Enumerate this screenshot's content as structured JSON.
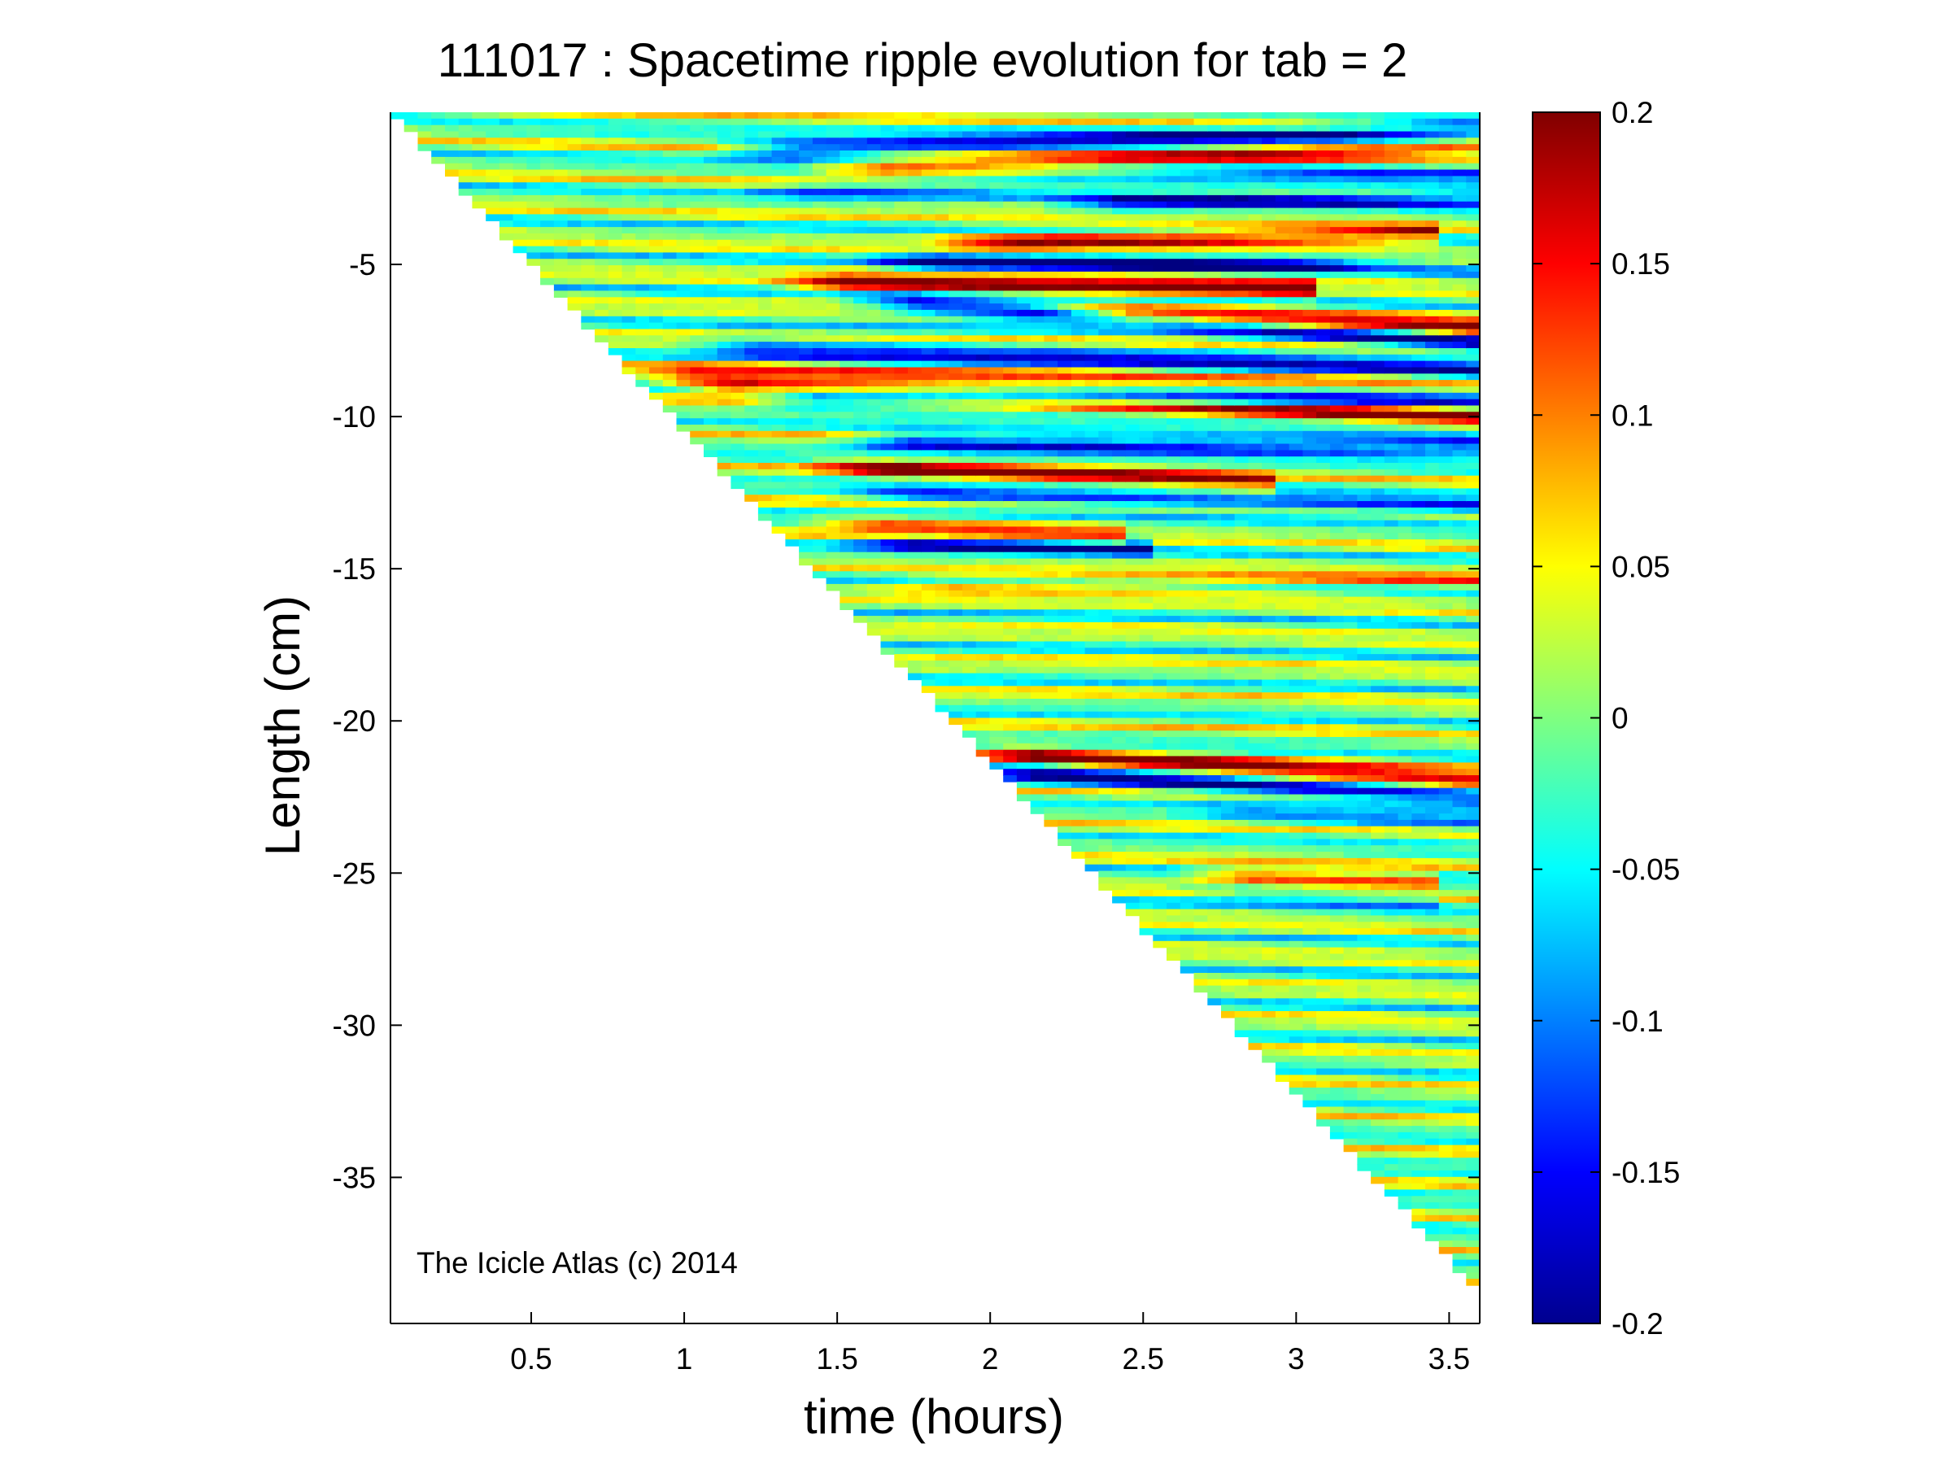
{
  "chart_data": {
    "type": "heatmap",
    "title": "111017 : Spacetime ripple evolution for tab = 2",
    "xlabel": "time (hours)",
    "ylabel": "Length (cm)",
    "xlim": [
      0.04,
      3.6
    ],
    "ylim": [
      -39.8,
      0
    ],
    "x_ticks": [
      0.5,
      1,
      1.5,
      2,
      2.5,
      3,
      3.5
    ],
    "x_tick_labels": [
      "0.5",
      "1",
      "1.5",
      "2",
      "2.5",
      "3",
      "3.5"
    ],
    "y_ticks": [
      -5,
      -10,
      -15,
      -20,
      -25,
      -30,
      -35
    ],
    "y_tick_labels": [
      "-5",
      "-10",
      "-15",
      "-20",
      "-25",
      "-30",
      "-35"
    ],
    "colorbar": {
      "colormap": "jet",
      "clim": [
        -0.2,
        0.2
      ],
      "ticks": [
        0.2,
        0.15,
        0.1,
        0.05,
        0,
        -0.05,
        -0.1,
        -0.15,
        -0.2
      ],
      "tick_labels": [
        "0.2",
        "0.15",
        "0.1",
        "0.05",
        "0",
        "-0.05",
        "-0.1",
        "-0.15",
        "-0.2"
      ]
    },
    "data_region": {
      "description_boundary": "icicle tip grows from 0 cm at t=0.04 h to -38.8 cm at t=3.6 h",
      "tip_start": [
        0.04,
        0
      ],
      "tip_end": [
        3.6,
        -38.8
      ]
    },
    "ridges": [
      {
        "t0": 1.1,
        "t1": 3.6,
        "y0": -1.3,
        "y1": -0.6,
        "amp": -0.17
      },
      {
        "t0": 1.4,
        "t1": 3.6,
        "y0": -1.9,
        "y1": -1.1,
        "amp": 0.15
      },
      {
        "t0": 1.2,
        "t1": 3.6,
        "y0": -2.6,
        "y1": -2.0,
        "amp": -0.09
      },
      {
        "t0": 2.2,
        "t1": 3.6,
        "y0": -3.0,
        "y1": -2.8,
        "amp": -0.14
      },
      {
        "t0": 1.8,
        "t1": 3.4,
        "y0": -4.3,
        "y1": -4.0,
        "amp": 0.17
      },
      {
        "t0": 1.6,
        "t1": 3.6,
        "y0": -4.9,
        "y1": -5.1,
        "amp": -0.18
      },
      {
        "t0": 1.3,
        "t1": 3.0,
        "y0": -5.6,
        "y1": -5.8,
        "amp": 0.19
      },
      {
        "t0": 3.0,
        "t1": 3.6,
        "y0": -5.2,
        "y1": -5.1,
        "amp": 0.12
      },
      {
        "t0": 1.5,
        "t1": 3.6,
        "y0": -6.1,
        "y1": -7.6,
        "amp": -0.18
      },
      {
        "t0": 2.2,
        "t1": 3.6,
        "y0": -6.6,
        "y1": -7.1,
        "amp": 0.19
      },
      {
        "t0": 1.0,
        "t1": 3.6,
        "y0": -7.7,
        "y1": -8.4,
        "amp": -0.14
      },
      {
        "t0": 0.8,
        "t1": 3.6,
        "y0": -8.4,
        "y1": -9.2,
        "amp": 0.09
      },
      {
        "t0": 0.9,
        "t1": 3.6,
        "y0": -8.9,
        "y1": -10.0,
        "amp": 0.18
      },
      {
        "t0": 1.2,
        "t1": 3.6,
        "y0": -9.4,
        "y1": -9.4,
        "amp": -0.19
      },
      {
        "t0": 1.5,
        "t1": 3.6,
        "y0": -10.8,
        "y1": -11.0,
        "amp": -0.17
      },
      {
        "t0": 1.4,
        "t1": 2.9,
        "y0": -11.6,
        "y1": -12.2,
        "amp": 0.17
      },
      {
        "t0": 1.5,
        "t1": 3.6,
        "y0": -12.5,
        "y1": -13.0,
        "amp": -0.13
      },
      {
        "t0": 1.4,
        "t1": 2.4,
        "y0": -13.5,
        "y1": -13.9,
        "amp": 0.14
      },
      {
        "t0": 1.5,
        "t1": 2.5,
        "y0": -14.1,
        "y1": -14.3,
        "amp": -0.16
      },
      {
        "t0": 1.6,
        "t1": 3.6,
        "y0": -15.6,
        "y1": -15.3,
        "amp": 0.08
      },
      {
        "t0": 1.9,
        "t1": 3.6,
        "y0": -21.0,
        "y1": -22.0,
        "amp": 0.18
      },
      {
        "t0": 1.9,
        "t1": 3.6,
        "y0": -21.6,
        "y1": -22.6,
        "amp": -0.18
      },
      {
        "t0": 2.6,
        "t1": 3.6,
        "y0": -23.0,
        "y1": -23.4,
        "amp": -0.07
      },
      {
        "t0": 2.6,
        "t1": 3.4,
        "y0": -25.0,
        "y1": -25.3,
        "amp": 0.15
      },
      {
        "t0": 2.6,
        "t1": 3.4,
        "y0": -25.5,
        "y1": -25.9,
        "amp": -0.08
      }
    ],
    "annotation": "The Icicle Atlas (c) 2014"
  }
}
